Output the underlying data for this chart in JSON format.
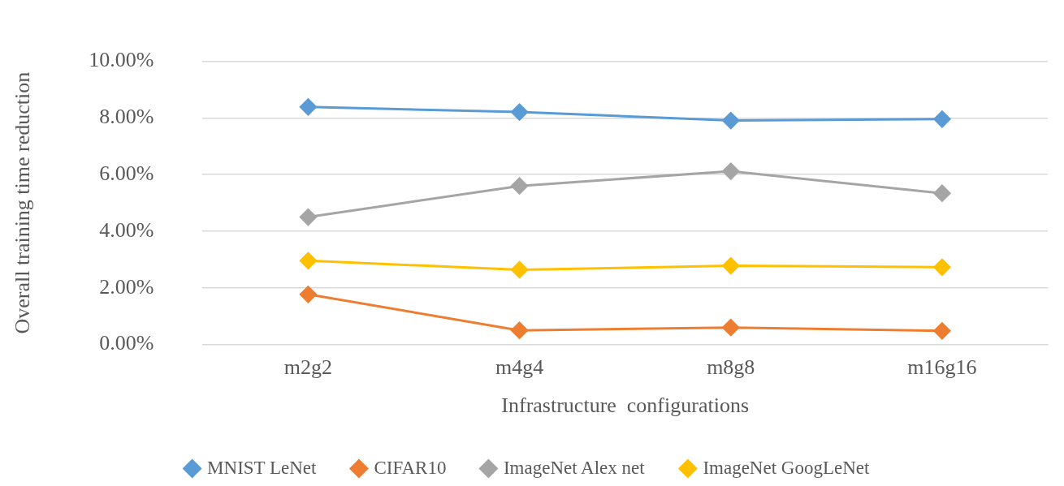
{
  "chart_data": {
    "type": "line",
    "xlabel": "Infrastructure  configurations",
    "ylabel": "Overall training time reduction",
    "categories": [
      "m2g2",
      "m4g4",
      "m8g8",
      "m16g16"
    ],
    "series": [
      {
        "name": "MNIST LeNet",
        "color": "#5b9bd5",
        "values": [
          8.39,
          8.21,
          7.91,
          7.96
        ]
      },
      {
        "name": "CIFAR10",
        "color": "#ed7d31",
        "values": [
          1.77,
          0.5,
          0.6,
          0.48
        ]
      },
      {
        "name": "ImageNet Alex net",
        "color": "#a5a5a5",
        "values": [
          4.5,
          5.6,
          6.12,
          5.34
        ]
      },
      {
        "name": "ImageNet GoogLeNet",
        "color": "#ffc000",
        "values": [
          2.96,
          2.64,
          2.78,
          2.73
        ]
      }
    ],
    "ylim": [
      0,
      10
    ],
    "yticks": [
      {
        "value": 0,
        "label": "0.00%"
      },
      {
        "value": 2,
        "label": "2.00%"
      },
      {
        "value": 4,
        "label": "4.00%"
      },
      {
        "value": 6,
        "label": "6.00%"
      },
      {
        "value": 8,
        "label": "8.00%"
      },
      {
        "value": 10,
        "label": "10.00%"
      }
    ],
    "grid": "y",
    "legend": "bottom",
    "marker": "diamond",
    "line_style": "solid"
  }
}
